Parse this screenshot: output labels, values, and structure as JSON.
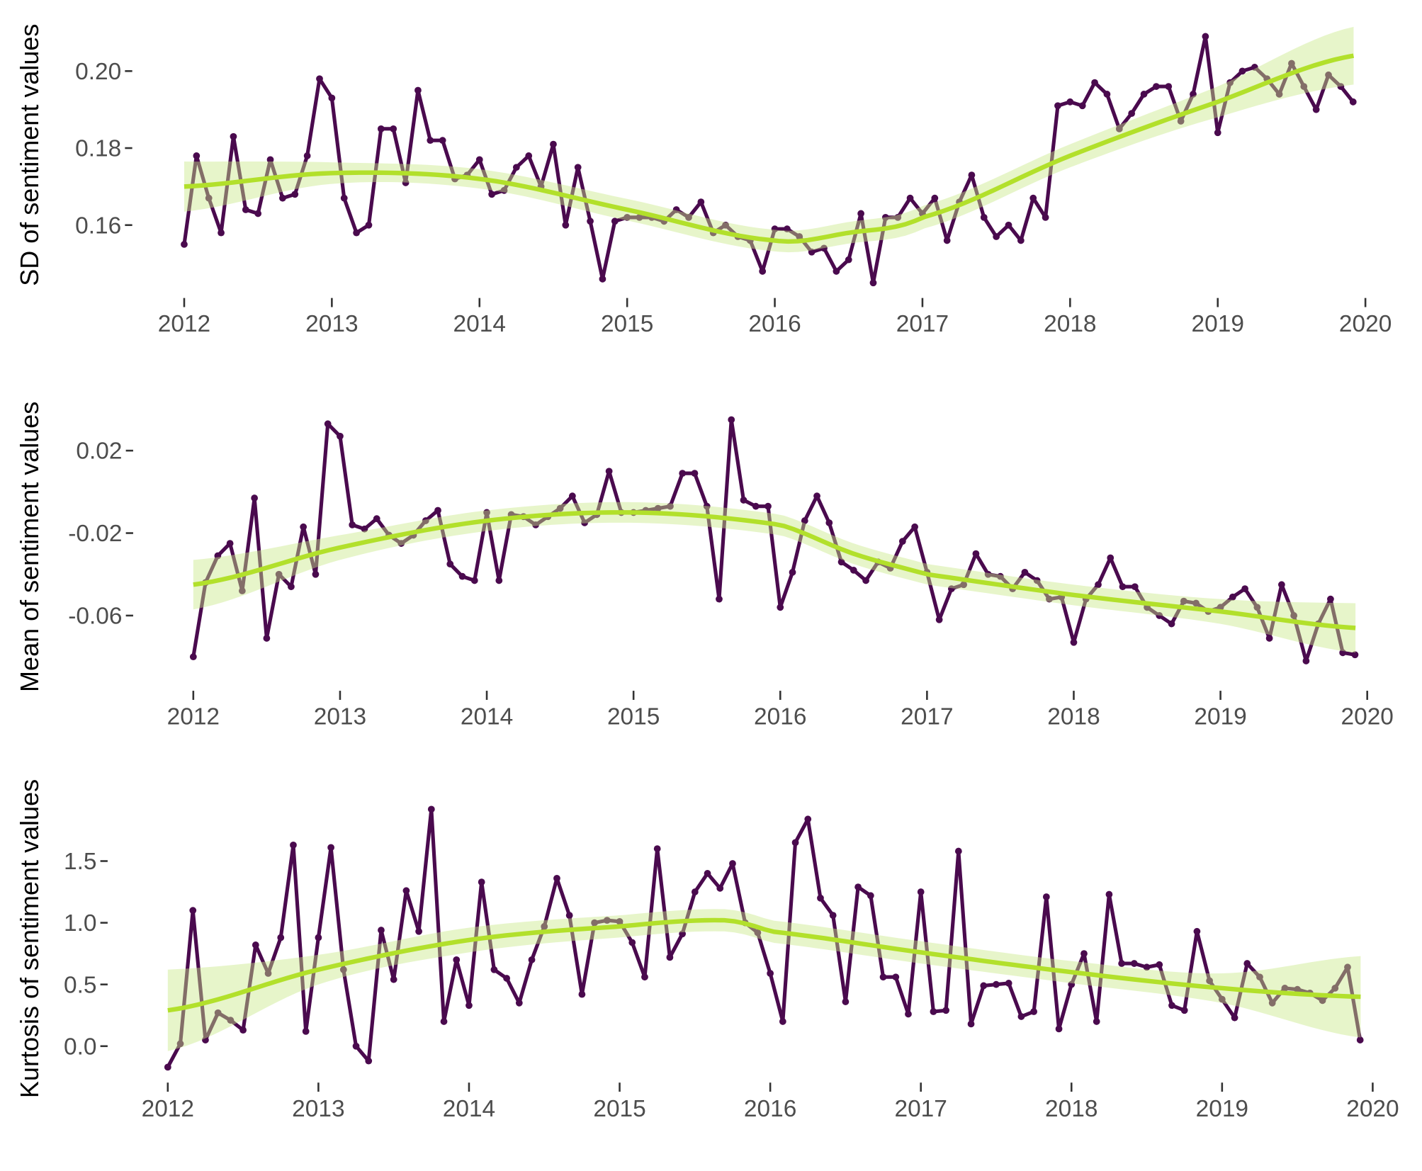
{
  "colors": {
    "line": "#4a0a4e",
    "smooth": "#b2e02b",
    "ribbon": "#c9e98a"
  },
  "chart_data": [
    {
      "type": "line",
      "ylabel": "SD of sentiment values",
      "xlim": [
        2012,
        2020
      ],
      "ylim": [
        0.143,
        0.211
      ],
      "grid": false,
      "xticks": [
        "2012",
        "2013",
        "2014",
        "2015",
        "2016",
        "2017",
        "2018",
        "2019",
        "2020"
      ],
      "yticks": [
        {
          "value": 0.16,
          "label": "0.16"
        },
        {
          "value": 0.18,
          "label": "0.18"
        },
        {
          "value": 0.2,
          "label": "0.20"
        }
      ],
      "start": "2012-01",
      "frequency": "monthly",
      "values": [
        0.155,
        0.178,
        0.167,
        0.158,
        0.183,
        0.164,
        0.163,
        0.177,
        0.167,
        0.168,
        0.178,
        0.198,
        0.193,
        0.167,
        0.158,
        0.16,
        0.185,
        0.185,
        0.171,
        0.195,
        0.182,
        0.182,
        0.172,
        0.173,
        0.177,
        0.168,
        0.169,
        0.175,
        0.178,
        0.17,
        0.181,
        0.16,
        0.175,
        0.161,
        0.146,
        0.161,
        0.162,
        0.162,
        0.162,
        0.161,
        0.164,
        0.162,
        0.166,
        0.158,
        0.16,
        0.157,
        0.156,
        0.148,
        0.159,
        0.159,
        0.157,
        0.153,
        0.154,
        0.148,
        0.151,
        0.163,
        0.145,
        0.162,
        0.162,
        0.167,
        0.163,
        0.167,
        0.156,
        0.166,
        0.173,
        0.162,
        0.157,
        0.16,
        0.156,
        0.167,
        0.162,
        0.191,
        0.192,
        0.191,
        0.197,
        0.194,
        0.185,
        0.189,
        0.194,
        0.196,
        0.196,
        0.187,
        0.194,
        0.209,
        0.184,
        0.197,
        0.2,
        0.201,
        0.198,
        0.194,
        0.202,
        0.196,
        0.19,
        0.199,
        0.196,
        0.192
      ],
      "smooth": {
        "x": [
          2012,
          2013,
          2014,
          2015,
          2016,
          2016.5,
          2017,
          2018,
          2019,
          2019.92
        ],
        "y": [
          0.17,
          0.1735,
          0.172,
          0.164,
          0.156,
          0.158,
          0.162,
          0.178,
          0.192,
          0.204
        ],
        "ci": [
          0.0065,
          0.0028,
          0.0025,
          0.0028,
          0.0028,
          0.0028,
          0.003,
          0.003,
          0.004,
          0.0075
        ]
      }
    },
    {
      "type": "line",
      "ylabel": "Mean of sentiment values",
      "xlim": [
        2012,
        2020
      ],
      "ylim": [
        -0.085,
        0.036
      ],
      "grid": false,
      "xticks": [
        "2012",
        "2013",
        "2014",
        "2015",
        "2016",
        "2017",
        "2018",
        "2019",
        "2020"
      ],
      "yticks": [
        {
          "value": -0.06,
          "label": "-0.06"
        },
        {
          "value": -0.02,
          "label": "-0.02"
        },
        {
          "value": 0.02,
          "label": "0.02"
        }
      ],
      "start": "2012-01",
      "frequency": "monthly",
      "values": [
        -0.08,
        -0.044,
        -0.031,
        -0.025,
        -0.048,
        -0.003,
        -0.071,
        -0.04,
        -0.046,
        -0.017,
        -0.04,
        0.033,
        0.027,
        -0.016,
        -0.018,
        -0.013,
        -0.021,
        -0.025,
        -0.021,
        -0.014,
        -0.009,
        -0.035,
        -0.041,
        -0.043,
        -0.01,
        -0.043,
        -0.011,
        -0.012,
        -0.016,
        -0.012,
        -0.008,
        -0.002,
        -0.015,
        -0.011,
        0.01,
        -0.01,
        -0.01,
        -0.009,
        -0.008,
        -0.007,
        0.009,
        0.009,
        -0.007,
        -0.052,
        0.035,
        -0.004,
        -0.007,
        -0.007,
        -0.056,
        -0.039,
        -0.014,
        -0.002,
        -0.015,
        -0.034,
        -0.038,
        -0.043,
        -0.034,
        -0.037,
        -0.024,
        -0.017,
        -0.039,
        -0.062,
        -0.047,
        -0.045,
        -0.03,
        -0.04,
        -0.041,
        -0.047,
        -0.039,
        -0.043,
        -0.052,
        -0.051,
        -0.073,
        -0.052,
        -0.045,
        -0.032,
        -0.046,
        -0.046,
        -0.056,
        -0.06,
        -0.064,
        -0.053,
        -0.054,
        -0.058,
        -0.056,
        -0.051,
        -0.047,
        -0.056,
        -0.071,
        -0.045,
        -0.06,
        -0.082,
        -0.064,
        -0.052,
        -0.078,
        -0.079
      ],
      "smooth": {
        "x": [
          2012,
          2013,
          2014,
          2015,
          2016,
          2016.5,
          2017,
          2018,
          2019,
          2019.92
        ],
        "y": [
          -0.045,
          -0.027,
          -0.014,
          -0.01,
          -0.016,
          -0.03,
          -0.04,
          -0.05,
          -0.058,
          -0.066
        ],
        "ci": [
          0.012,
          0.006,
          0.005,
          0.005,
          0.005,
          0.005,
          0.005,
          0.005,
          0.006,
          0.012
        ]
      }
    },
    {
      "type": "line",
      "ylabel": "Kurtosis of sentiment values",
      "xlim": [
        2012,
        2020
      ],
      "ylim": [
        -0.2,
        1.95
      ],
      "grid": false,
      "xticks": [
        "2012",
        "2013",
        "2014",
        "2015",
        "2016",
        "2017",
        "2018",
        "2019",
        "2020"
      ],
      "yticks": [
        {
          "value": 0.0,
          "label": "0.0"
        },
        {
          "value": 0.5,
          "label": "0.5"
        },
        {
          "value": 1.0,
          "label": "1.0"
        },
        {
          "value": 1.5,
          "label": "1.5"
        }
      ],
      "start": "2012-01",
      "frequency": "monthly",
      "values": [
        -0.17,
        0.02,
        1.1,
        0.05,
        0.27,
        0.21,
        0.13,
        0.82,
        0.59,
        0.88,
        1.63,
        0.12,
        0.88,
        1.61,
        0.62,
        0.0,
        -0.12,
        0.94,
        0.54,
        1.26,
        0.93,
        1.92,
        0.2,
        0.7,
        0.33,
        1.33,
        0.62,
        0.55,
        0.35,
        0.7,
        0.97,
        1.36,
        1.06,
        0.42,
        1.0,
        1.02,
        1.01,
        0.84,
        0.56,
        1.6,
        0.72,
        0.91,
        1.25,
        1.4,
        1.28,
        1.48,
        1.0,
        0.92,
        0.59,
        0.2,
        1.65,
        1.84,
        1.2,
        1.06,
        0.36,
        1.29,
        1.22,
        0.56,
        0.56,
        0.26,
        1.25,
        0.28,
        0.29,
        1.58,
        0.18,
        0.49,
        0.5,
        0.51,
        0.24,
        0.28,
        1.21,
        0.14,
        0.5,
        0.75,
        0.2,
        1.23,
        0.67,
        0.67,
        0.64,
        0.66,
        0.33,
        0.29,
        0.93,
        0.53,
        0.38,
        0.23,
        0.67,
        0.56,
        0.35,
        0.47,
        0.46,
        0.43,
        0.37,
        0.47,
        0.64,
        0.05
      ],
      "smooth": {
        "x": [
          2012,
          2013,
          2014,
          2015,
          2015.7,
          2016,
          2017,
          2018,
          2019,
          2019.92
        ],
        "y": [
          0.29,
          0.62,
          0.86,
          0.97,
          1.02,
          0.93,
          0.76,
          0.6,
          0.47,
          0.4
        ],
        "ci": [
          0.33,
          0.12,
          0.1,
          0.09,
          0.09,
          0.09,
          0.09,
          0.09,
          0.12,
          0.33
        ]
      }
    }
  ]
}
